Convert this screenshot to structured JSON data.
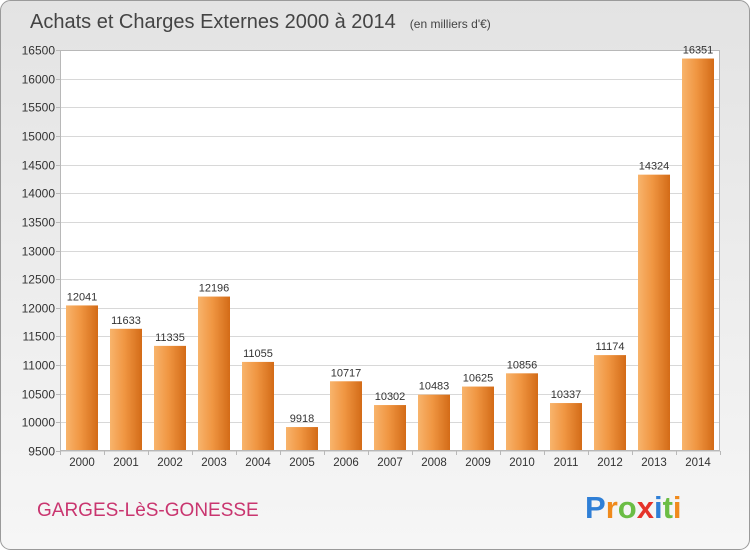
{
  "chart_data": {
    "type": "bar",
    "title": "Achats et Charges Externes 2000 à 2014",
    "subtitle": "(en milliers d'€)",
    "categories": [
      "2000",
      "2001",
      "2002",
      "2003",
      "2004",
      "2005",
      "2006",
      "2007",
      "2008",
      "2009",
      "2010",
      "2011",
      "2012",
      "2013",
      "2014"
    ],
    "values": [
      12041,
      11633,
      11335,
      12196,
      11055,
      9918,
      10717,
      10302,
      10483,
      10625,
      10856,
      10337,
      11174,
      14324,
      16351
    ],
    "ylim": [
      9500,
      16500
    ],
    "yticks": [
      9500,
      10000,
      10500,
      11000,
      11500,
      12000,
      12500,
      13000,
      13500,
      14000,
      14500,
      15000,
      15500,
      16000,
      16500
    ],
    "grid": true,
    "data_labels": true
  },
  "footer": {
    "location": "GARGES-LèS-GONESSE",
    "logo": {
      "text": "Proxiti",
      "colors": [
        "#2f7fd6",
        "#f08a1c",
        "#6bbd45",
        "#e5332a",
        "#2f7fd6",
        "#6bbd45",
        "#f08a1c"
      ]
    }
  },
  "colors": {
    "background_top": "#e3e3e3",
    "background_bottom": "#f6f6f6",
    "border": "#9a9a9a",
    "plot_background": "#ffffff",
    "plot_frame": "#b8b8b8",
    "grid": "#d8d8d8",
    "bar_left": "#f8b46c",
    "bar_mid": "#f09642",
    "bar_right": "#d36b17",
    "title": "#444444",
    "text": "#333333",
    "location": "#c9356f"
  }
}
